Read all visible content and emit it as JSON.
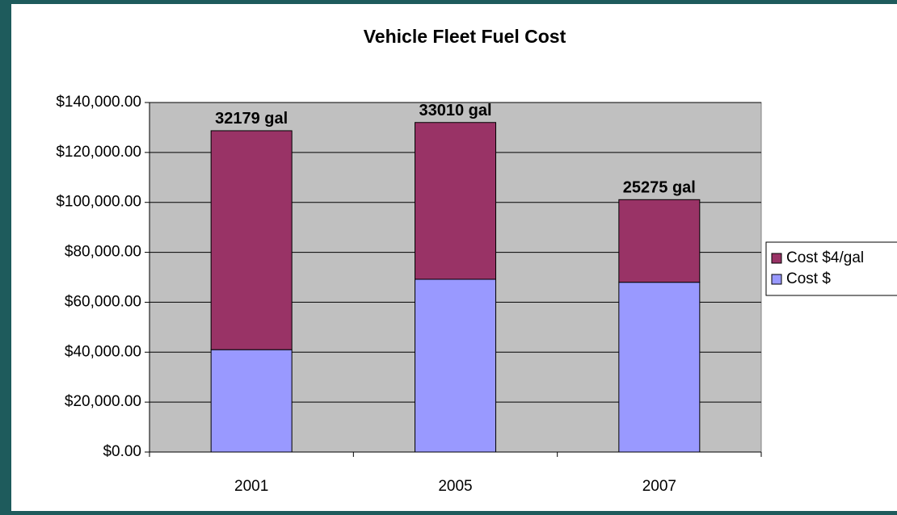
{
  "chart_data": {
    "type": "bar",
    "stacked": true,
    "title": "Vehicle Fleet Fuel Cost",
    "categories": [
      "2001",
      "2005",
      "2007"
    ],
    "annotations": [
      "32179 gal",
      "33010 gal",
      "25275 gal"
    ],
    "series": [
      {
        "name": "Cost $",
        "color": "#9999ff",
        "values": [
          41000,
          69200,
          68000
        ]
      },
      {
        "name": "Cost $4/gal",
        "color": "#993366",
        "values": [
          87700,
          62800,
          33100
        ]
      }
    ],
    "ylim": [
      0,
      140000
    ],
    "yticks": [
      {
        "value": 0,
        "label": "$0.00"
      },
      {
        "value": 20000,
        "label": "$20,000.00"
      },
      {
        "value": 40000,
        "label": "$40,000.00"
      },
      {
        "value": 60000,
        "label": "$60,000.00"
      },
      {
        "value": 80000,
        "label": "$80,000.00"
      },
      {
        "value": 100000,
        "label": "$100,000.00"
      },
      {
        "value": 120000,
        "label": "$120,000.00"
      },
      {
        "value": 140000,
        "label": "$140,000.00"
      }
    ],
    "grid": true,
    "legend": "right",
    "plot_background": "#c0c0c0"
  }
}
